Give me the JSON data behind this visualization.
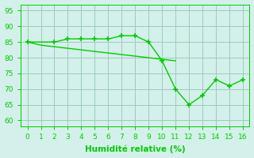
{
  "line1_x": [
    0,
    2,
    3,
    4,
    5,
    6,
    7,
    8,
    9,
    10,
    11,
    12,
    13,
    14,
    15,
    16
  ],
  "line1_y": [
    85,
    85,
    86,
    86,
    86,
    86,
    87,
    87,
    85,
    79,
    70,
    65,
    68,
    73,
    71,
    73
  ],
  "line2_x": [
    0,
    1,
    2,
    3,
    4,
    5,
    6,
    7,
    8,
    9,
    10,
    11
  ],
  "line2_y": [
    85,
    84,
    83.5,
    83,
    82.5,
    82,
    81.5,
    81,
    80.5,
    80,
    79.5,
    79
  ],
  "line_color": "#00cc00",
  "bg_color": "#d4f0ea",
  "grid_color": "#99ccbb",
  "xlabel": "Humidité relative (%)",
  "xlim": [
    -0.5,
    16.5
  ],
  "ylim": [
    58,
    97
  ],
  "yticks": [
    60,
    65,
    70,
    75,
    80,
    85,
    90,
    95
  ],
  "xticks": [
    0,
    1,
    2,
    3,
    4,
    5,
    6,
    7,
    8,
    9,
    10,
    11,
    12,
    13,
    14,
    15,
    16
  ],
  "marker": "+",
  "markersize": 5,
  "linewidth": 1.0,
  "tick_fontsize": 6.5,
  "xlabel_fontsize": 7.5
}
